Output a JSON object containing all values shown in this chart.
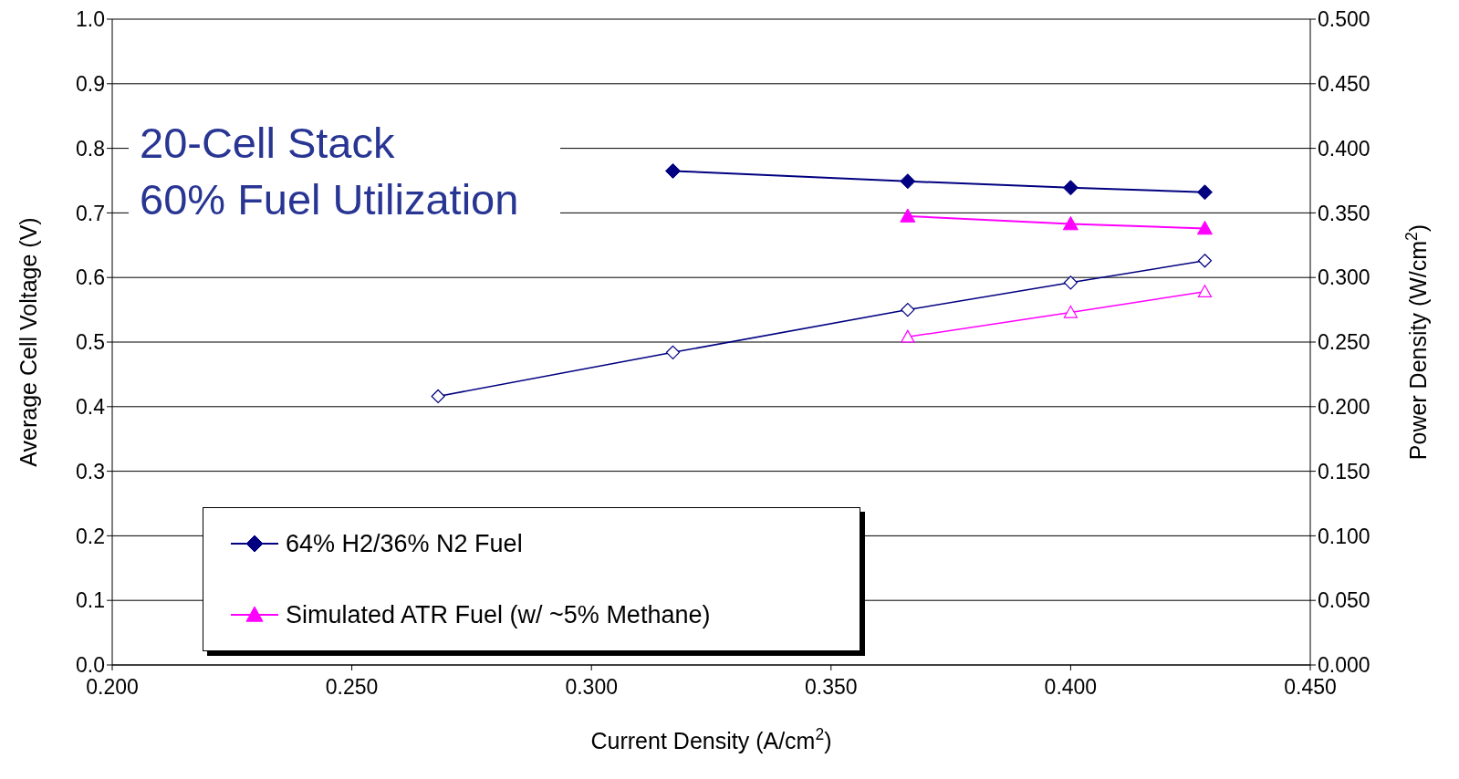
{
  "chart_data": {
    "type": "line",
    "xlabel": "Current Density (A/cm$^{2}$)",
    "ylabel": "Average Cell Voltage (V)",
    "y2label": "Power Density (W/cm$^{2}$)",
    "annotations": [
      "20-Cell Stack",
      "60% Fuel Utilization"
    ],
    "series": [
      {
        "name": "64% H2/36% N2 Fuel",
        "color": "#000080",
        "marker": "diamond",
        "x": [
          0.317,
          0.366,
          0.4,
          0.428
        ],
        "values": [
          0.765,
          0.749,
          0.739,
          0.732
        ]
      },
      {
        "name": "Simulated ATR Fuel (w/ ~5% Methane)",
        "color": "#ff00ff",
        "marker": "triangle",
        "x": [
          0.366,
          0.4,
          0.428
        ],
        "values": [
          0.695,
          0.683,
          0.676
        ]
      },
      {
        "color": "#000080",
        "marker": "diamond",
        "axis": "y2",
        "x": [
          0.268,
          0.317,
          0.366,
          0.4,
          0.428
        ],
        "values": [
          0.208,
          0.242,
          0.275,
          0.296,
          0.313
        ]
      },
      {
        "color": "#ff00ff",
        "marker": "triangle",
        "axis": "y2",
        "x": [
          0.366,
          0.4,
          0.428
        ],
        "values": [
          0.254,
          0.273,
          0.289
        ]
      }
    ],
    "xlim": [
      0.2,
      0.45
    ],
    "xticks": [
      {
        "value": 0.2,
        "label": "0.200"
      },
      {
        "value": 0.25,
        "label": "0.250"
      },
      {
        "value": 0.3,
        "label": "0.300"
      },
      {
        "value": 0.35,
        "label": "0.350"
      },
      {
        "value": 0.4,
        "label": "0.400"
      },
      {
        "value": 0.45,
        "label": "0.450"
      }
    ],
    "ylim": [
      0,
      1
    ],
    "yticks": [
      {
        "value": 0,
        "label": "0.0"
      },
      0.1,
      0.2,
      0.3,
      0.4,
      0.5,
      0.6,
      0.7,
      0.8,
      0.9,
      {
        "value": 1,
        "label": "1.0"
      }
    ],
    "y2lim": [
      0,
      0.5
    ],
    "y2ticks": [
      {
        "value": 0,
        "label": "0.000"
      },
      {
        "value": 0.05,
        "label": "0.050"
      },
      {
        "value": 0.1,
        "label": "0.100"
      },
      {
        "value": 0.15,
        "label": "0.150"
      },
      {
        "value": 0.2,
        "label": "0.200"
      },
      {
        "value": 0.25,
        "label": "0.250"
      },
      {
        "value": 0.3,
        "label": "0.300"
      },
      {
        "value": 0.35,
        "label": "0.350"
      },
      {
        "value": 0.4,
        "label": "0.400"
      },
      {
        "value": 0.45,
        "label": "0.450"
      },
      {
        "value": 0.5,
        "label": "0.500"
      }
    ],
    "grid": "y",
    "legend": "bottom left",
    "line_style": "solid"
  }
}
